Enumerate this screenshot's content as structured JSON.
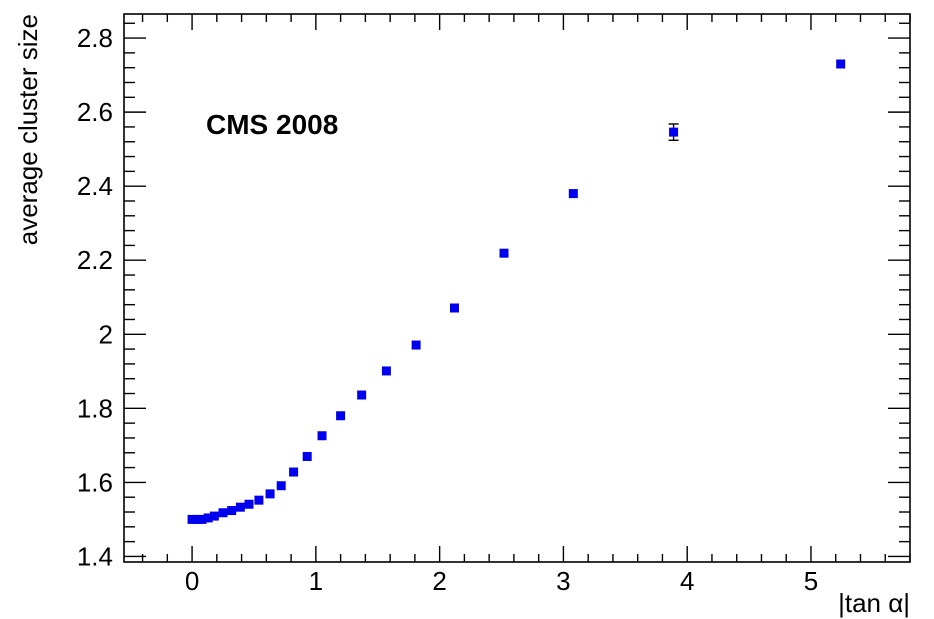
{
  "chart_data": {
    "type": "scatter",
    "xlabel": "|tan α|",
    "ylabel": "average cluster size",
    "annotation": "CMS 2008",
    "xlim": [
      -0.55,
      5.8
    ],
    "ylim": [
      1.385,
      2.865
    ],
    "x_ticks": [
      0,
      1,
      2,
      3,
      4,
      5
    ],
    "x_tick_labels": [
      "0",
      "1",
      "2",
      "3",
      "4",
      "5"
    ],
    "y_ticks": [
      1.4,
      1.6,
      1.8,
      2.0,
      2.2,
      2.4,
      2.6,
      2.8
    ],
    "y_tick_labels": [
      "1.4",
      "1.6",
      "1.8",
      "2",
      "2.2",
      "2.4",
      "2.6",
      "2.8"
    ],
    "grid": false,
    "legend": "none",
    "marker_color": "#0000ee",
    "points": [
      {
        "x": 0.0,
        "y": 1.5
      },
      {
        "x": 0.04,
        "y": 1.5
      },
      {
        "x": 0.08,
        "y": 1.5
      },
      {
        "x": 0.13,
        "y": 1.504
      },
      {
        "x": 0.18,
        "y": 1.509
      },
      {
        "x": 0.25,
        "y": 1.518
      },
      {
        "x": 0.32,
        "y": 1.524
      },
      {
        "x": 0.39,
        "y": 1.533
      },
      {
        "x": 0.46,
        "y": 1.541
      },
      {
        "x": 0.54,
        "y": 1.552
      },
      {
        "x": 0.63,
        "y": 1.569
      },
      {
        "x": 0.72,
        "y": 1.591
      },
      {
        "x": 0.82,
        "y": 1.628
      },
      {
        "x": 0.93,
        "y": 1.67
      },
      {
        "x": 1.05,
        "y": 1.726
      },
      {
        "x": 1.2,
        "y": 1.78
      },
      {
        "x": 1.37,
        "y": 1.836
      },
      {
        "x": 1.57,
        "y": 1.901
      },
      {
        "x": 1.81,
        "y": 1.971
      },
      {
        "x": 2.12,
        "y": 2.071
      },
      {
        "x": 2.52,
        "y": 2.219
      },
      {
        "x": 3.08,
        "y": 2.38
      },
      {
        "x": 3.89,
        "y": 2.546,
        "err": 0.022
      },
      {
        "x": 5.24,
        "y": 2.73
      }
    ]
  }
}
